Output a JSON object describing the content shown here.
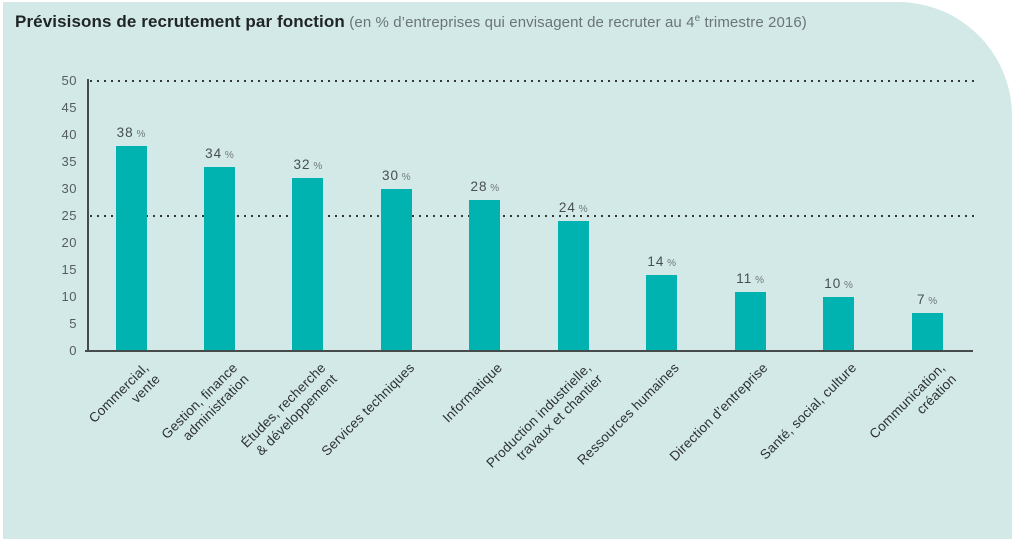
{
  "header": {
    "title": "Prévisisons de recrutement par fonction",
    "subtitle_pre": "(en % d’entreprises qui envisagent de recruter au 4",
    "subtitle_sup": "e",
    "subtitle_post": " trimestre 2016)"
  },
  "colors": {
    "card_bg": "#d3e9e8",
    "bar": "#00b3b0",
    "axis": "#454b4b",
    "grid_dots": "#323737",
    "tick_label": "#555d5d",
    "value_label": "#474f4f",
    "percent_sign": "#6f7777",
    "title": "#1f2424",
    "subtitle": "#6b7575"
  },
  "chart_data": {
    "type": "bar",
    "title": "Prévisisons de recrutement par fonction",
    "subtitle": "(en % d’entreprises qui envisagent de recruter au 4e trimestre 2016)",
    "unit": "%",
    "value_label_format": "{v} %",
    "categories": [
      [
        "Commercial,",
        "vente"
      ],
      [
        "Gestion, finance",
        "administration"
      ],
      [
        "Études, recherche",
        "& développement"
      ],
      [
        "Services techniques"
      ],
      [
        "Informatique"
      ],
      [
        "Production industrielle,",
        "travaux et chantier"
      ],
      [
        "Ressources humaines"
      ],
      [
        "Direction d’entreprise"
      ],
      [
        "Santé, social, culture"
      ],
      [
        "Communication,",
        "création"
      ]
    ],
    "values": [
      38,
      34,
      32,
      30,
      28,
      24,
      14,
      11,
      10,
      7
    ],
    "xlabel": "",
    "ylabel": "",
    "ylim": [
      0,
      50
    ],
    "ytick_step": 5,
    "yticks": [
      0,
      5,
      10,
      15,
      20,
      25,
      30,
      35,
      40,
      45,
      50
    ],
    "gridlines_at": [
      50,
      25
    ],
    "grid_style": "dotted",
    "legend": "none",
    "bar_color": "#00b3b0"
  }
}
